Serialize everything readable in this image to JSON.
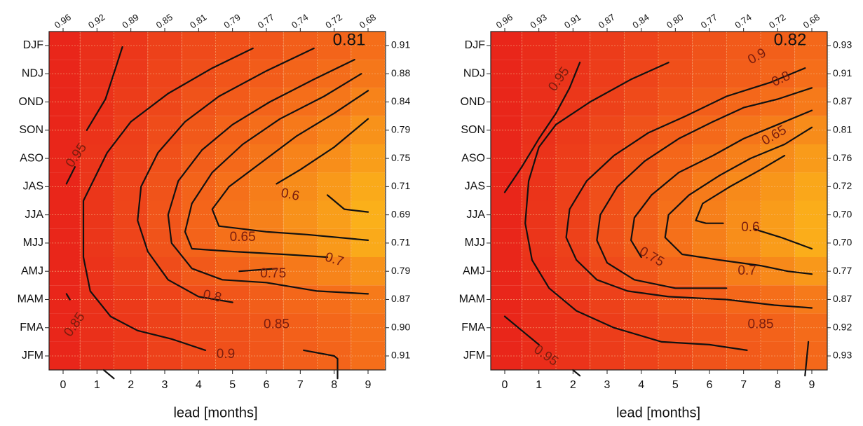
{
  "chart_data": [
    {
      "type": "heatmap",
      "title": "",
      "xlabel": "lead [months]",
      "ylabel": "",
      "x_ticks": [
        "0",
        "1",
        "2",
        "3",
        "4",
        "5",
        "6",
        "7",
        "8",
        "9"
      ],
      "y_categories": [
        "DJF",
        "NDJ",
        "OND",
        "SON",
        "ASO",
        "JAS",
        "JJA",
        "MJJ",
        "AMJ",
        "MAM",
        "FMA",
        "JFM"
      ],
      "top_labels": [
        "0.96",
        "0.92",
        "0.89",
        "0.85",
        "0.81",
        "0.79",
        "0.77",
        "0.74",
        "0.72",
        "0.68"
      ],
      "right_labels": [
        "0.91",
        "0.88",
        "0.84",
        "0.79",
        "0.75",
        "0.71",
        "0.69",
        "0.71",
        "0.79",
        "0.87",
        "0.90",
        "0.91"
      ],
      "corner_value": "0.81",
      "contour_labels": [
        "0.95",
        "0.85",
        "0.9",
        "0.6",
        "0.65",
        "0.7",
        "0.75",
        "0.8",
        "0.85"
      ],
      "grid": true,
      "colormap": [
        "#e8231a",
        "#f4681a",
        "#fbb21a"
      ]
    },
    {
      "type": "heatmap",
      "title": "",
      "xlabel": "lead [months]",
      "ylabel": "",
      "x_ticks": [
        "0",
        "1",
        "2",
        "3",
        "4",
        "5",
        "6",
        "7",
        "8",
        "9"
      ],
      "y_categories": [
        "DJF",
        "NDJ",
        "OND",
        "SON",
        "ASO",
        "JAS",
        "JJA",
        "MJJ",
        "AMJ",
        "MAM",
        "FMA",
        "JFM"
      ],
      "top_labels": [
        "0.96",
        "0.93",
        "0.91",
        "0.87",
        "0.84",
        "0.80",
        "0.77",
        "0.74",
        "0.72",
        "0.68"
      ],
      "right_labels": [
        "0.93",
        "0.91",
        "0.87",
        "0.81",
        "0.76",
        "0.72",
        "0.70",
        "0.70",
        "0.77",
        "0.87",
        "0.92",
        "0.93"
      ],
      "corner_value": "0.82",
      "contour_labels": [
        "0.9",
        "0.95",
        "0.8",
        "0.65",
        "0.6",
        "0.75",
        "0.7",
        "0.85",
        "0.95"
      ],
      "grid": true,
      "colormap": [
        "#e8231a",
        "#f4681a",
        "#fbb21a"
      ]
    }
  ]
}
